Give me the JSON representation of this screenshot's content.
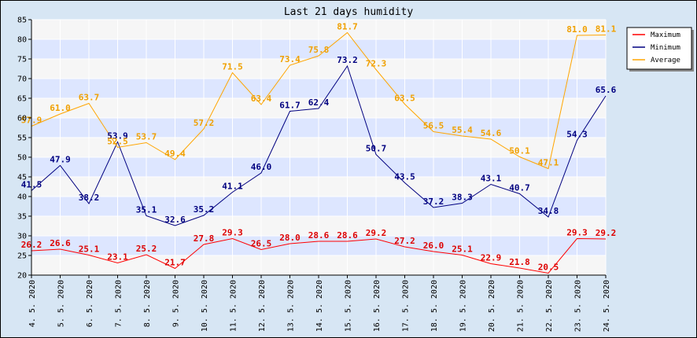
{
  "chart_data": {
    "type": "line",
    "title": "Last 21 days humidity",
    "categories": [
      "4. 5. 2020",
      "5. 5. 2020",
      "6. 5. 2020",
      "7. 5. 2020",
      "8. 5. 2020",
      "9. 5. 2020",
      "10. 5. 2020",
      "11. 5. 2020",
      "12. 5. 2020",
      "13. 5. 2020",
      "14. 5. 2020",
      "15. 5. 2020",
      "16. 5. 2020",
      "17. 5. 2020",
      "18. 5. 2020",
      "19. 5. 2020",
      "20. 5. 2020",
      "21. 5. 2020",
      "22. 5. 2020",
      "23. 5. 2020",
      "24. 5. 2020"
    ],
    "ylim": [
      20,
      85
    ],
    "yticks": [
      20,
      25,
      30,
      35,
      40,
      45,
      50,
      55,
      60,
      65,
      70,
      75,
      80,
      85
    ],
    "legend_position": "top-right",
    "series": [
      {
        "name": "Maximum",
        "color": "#ff0000",
        "label_color": "#dd0000",
        "values": [
          26.2,
          26.6,
          25.1,
          23.1,
          25.2,
          21.7,
          27.8,
          29.3,
          26.5,
          28.0,
          28.6,
          28.6,
          29.2,
          27.2,
          26.0,
          25.1,
          22.9,
          21.8,
          20.5,
          29.3,
          29.2
        ]
      },
      {
        "name": "Minimum",
        "color": "#000080",
        "label_color": "#000080",
        "values": [
          41.5,
          47.9,
          38.2,
          53.9,
          35.1,
          32.6,
          35.2,
          41.1,
          46.0,
          61.7,
          62.4,
          73.2,
          50.7,
          43.5,
          37.2,
          38.3,
          43.1,
          40.7,
          34.8,
          54.3,
          65.6
        ]
      },
      {
        "name": "Average",
        "color": "#ffa500",
        "label_color": "#f0a000",
        "values": [
          57.9,
          61.0,
          63.7,
          52.5,
          53.7,
          49.4,
          57.2,
          71.5,
          63.4,
          73.4,
          75.8,
          81.7,
          72.3,
          63.5,
          56.5,
          55.4,
          54.6,
          50.1,
          47.1,
          81.0,
          81.1
        ]
      }
    ]
  }
}
